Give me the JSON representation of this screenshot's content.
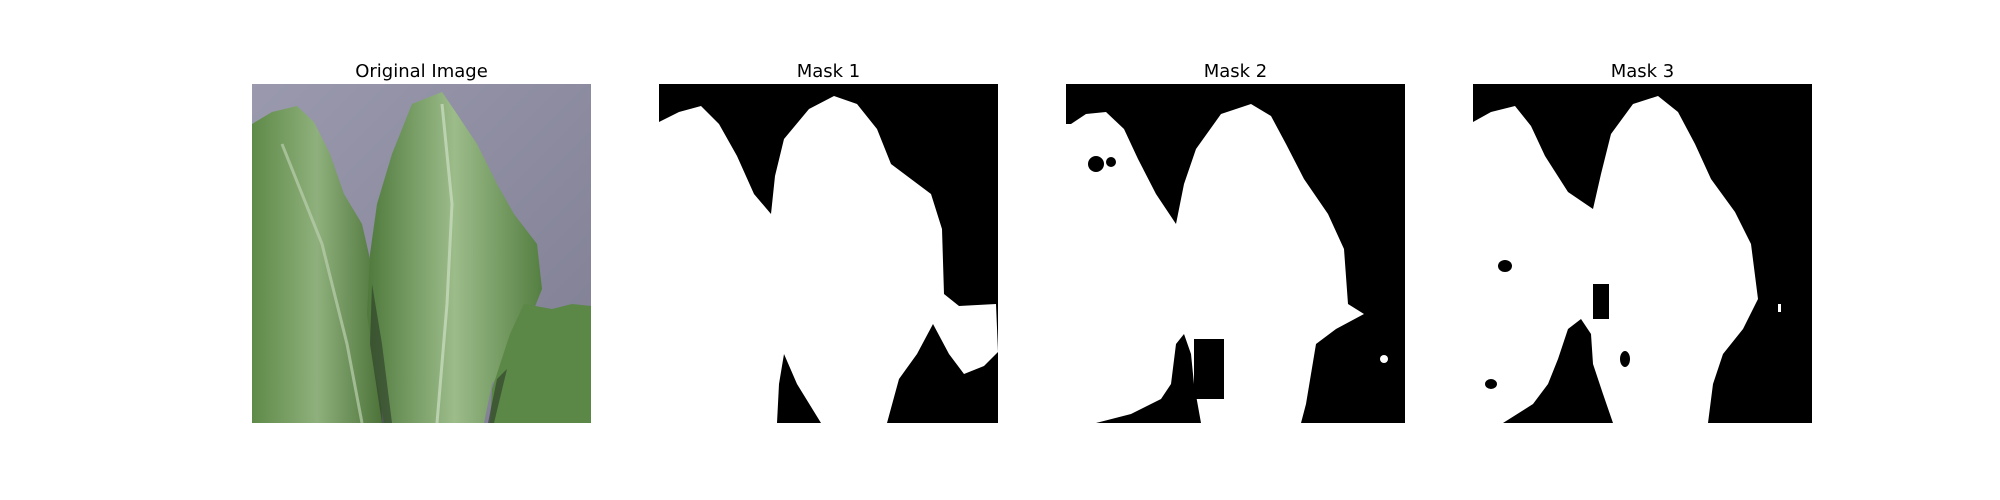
{
  "figure": {
    "panels": [
      {
        "title": "Original Image",
        "kind": "photo",
        "subject": "leaf-photo"
      },
      {
        "title": "Mask 1",
        "kind": "mask"
      },
      {
        "title": "Mask 2",
        "kind": "mask"
      },
      {
        "title": "Mask 3",
        "kind": "mask"
      }
    ],
    "colors": {
      "background_photo": "#8f8ea2",
      "leaf_dark": "#4f7a3f",
      "leaf_mid": "#6b9452",
      "leaf_light": "#a8c39a",
      "mask_fg": "#ffffff",
      "mask_bg": "#000000"
    }
  }
}
